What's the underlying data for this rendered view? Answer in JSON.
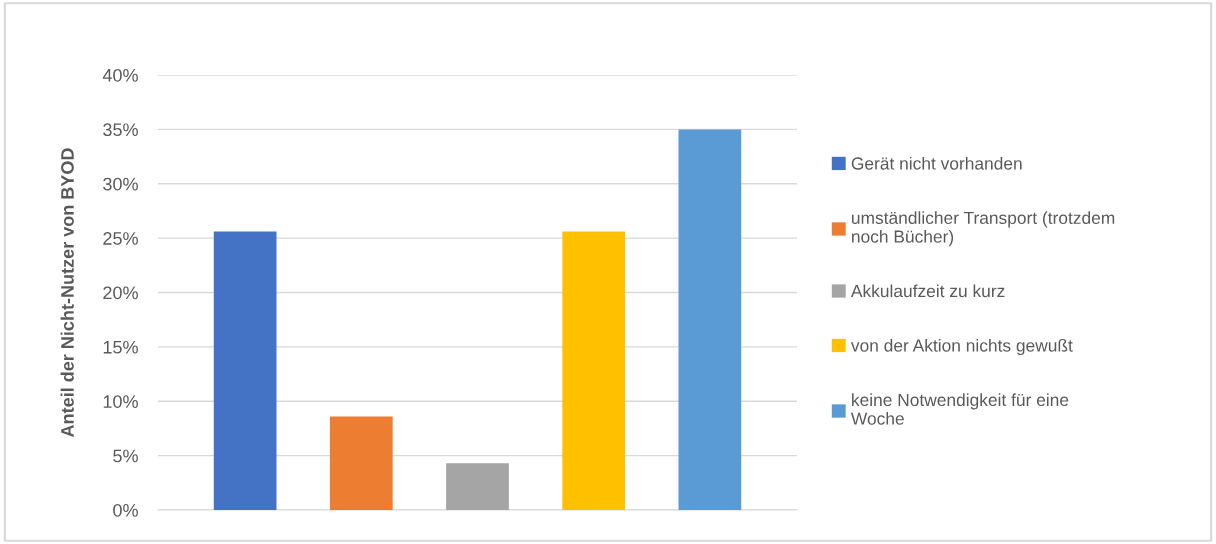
{
  "chart_data": {
    "type": "bar",
    "ylabel": "Anteil der Nicht-Nutzer von BYOD",
    "categories": [
      null
    ],
    "series": [
      {
        "name": "Gerät nicht vorhanden",
        "color": "#4472c4",
        "values": [
          25.6
        ]
      },
      {
        "name": "umständlicher Transport (trotzdem noch Bücher)",
        "color": "#ed7d31",
        "values": [
          8.6
        ]
      },
      {
        "name": "Akkulaufzeit zu kurz",
        "color": "#a5a5a5",
        "values": [
          4.3
        ]
      },
      {
        "name": "von der Aktion nichts gewußt",
        "color": "#ffc000",
        "values": [
          25.6
        ]
      },
      {
        "name": "keine Notwendigkeit für eine Woche",
        "color": "#5b9bd5",
        "values": [
          35.0
        ]
      }
    ],
    "ylim": [
      0,
      40
    ],
    "yticks": [
      {
        "value": 0,
        "label": "0%"
      },
      {
        "value": 5,
        "label": "5%"
      },
      {
        "value": 10,
        "label": "10%"
      },
      {
        "value": 15,
        "label": "15%"
      },
      {
        "value": 20,
        "label": "20%"
      },
      {
        "value": 25,
        "label": "25%"
      },
      {
        "value": 30,
        "label": "30%"
      },
      {
        "value": 35,
        "label": "35%"
      },
      {
        "value": 40,
        "label": "40%"
      }
    ],
    "grid": "y",
    "legend": "right"
  }
}
